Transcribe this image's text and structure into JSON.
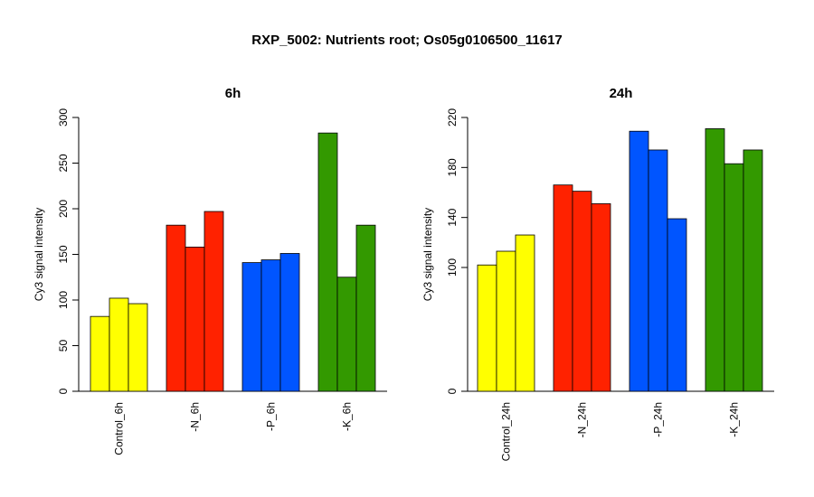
{
  "title": "RXP_5002: Nutrients root; Os05g0106500_11617",
  "chart_data": [
    {
      "type": "bar",
      "title": "6h",
      "ylabel": "Cy3 signal intensity",
      "ylim": [
        0,
        300
      ],
      "yticks": [
        0,
        50,
        100,
        150,
        200,
        250,
        300
      ],
      "categories": [
        "Control_6h",
        "-N_6h",
        "-P_6h",
        "-K_6h"
      ],
      "colors": [
        "#ffff00",
        "#ff2200",
        "#0055ff",
        "#339900"
      ],
      "values": [
        [
          82,
          102,
          96
        ],
        [
          182,
          158,
          197
        ],
        [
          141,
          144,
          151
        ],
        [
          283,
          125,
          182
        ]
      ]
    },
    {
      "type": "bar",
      "title": "24h",
      "ylabel": "Cy3 signal intensity",
      "ylim": [
        0,
        220
      ],
      "yticks": [
        0,
        100,
        140,
        180,
        220
      ],
      "categories": [
        "Control_24h",
        "-N_24h",
        "-P_24h",
        "-K_24h"
      ],
      "colors": [
        "#ffff00",
        "#ff2200",
        "#0055ff",
        "#339900"
      ],
      "values": [
        [
          102,
          113,
          126
        ],
        [
          166,
          161,
          151
        ],
        [
          209,
          194,
          139
        ],
        [
          211,
          183,
          194
        ]
      ]
    }
  ]
}
